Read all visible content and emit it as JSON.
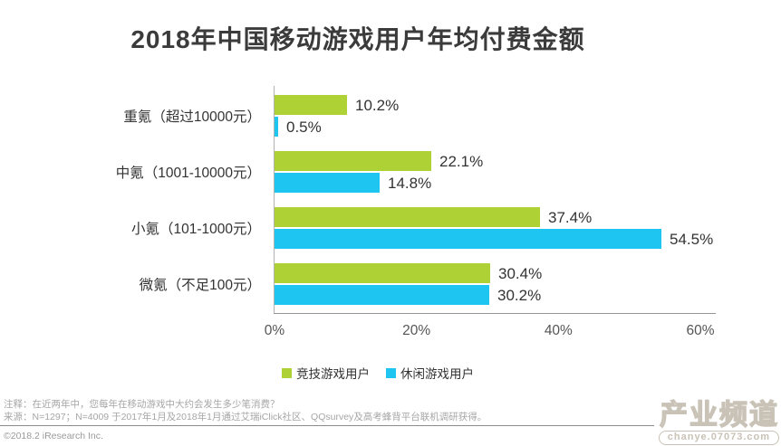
{
  "title": "2018年中国移动游戏用户年均付费金额",
  "chart_data": {
    "type": "bar",
    "orientation": "horizontal",
    "categories": [
      "重氪（超过10000元）",
      "中氪（1001-10000元）",
      "小氪（101-1000元）",
      "微氪（不足100元）"
    ],
    "series": [
      {
        "name": "竞技游戏用户",
        "color": "#aed136",
        "values": [
          10.2,
          22.1,
          37.4,
          30.4
        ]
      },
      {
        "name": "休闲游戏用户",
        "color": "#1ec5f0",
        "values": [
          0.5,
          14.8,
          54.5,
          30.2
        ]
      }
    ],
    "x_ticks": [
      "0%",
      "20%",
      "40%",
      "60%"
    ],
    "xlim": [
      0,
      60
    ],
    "value_suffix": "%",
    "grid": false,
    "legend_position": "bottom"
  },
  "footer": {
    "note": "注释：在近两年中，您每年在移动游戏中大约会发生多少笔消费？",
    "source": "来源：N=1297；N=4009 于2017年1月及2018年1月通过艾瑞iClick社区、QQsurvey及高考蜂背平台联机调研获得。",
    "copyright": "©2018.2 iResearch Inc."
  },
  "watermark": {
    "title": "产业频道",
    "url": "chanye.07073.com"
  },
  "colors": {
    "title_text": "#3b3b3b",
    "label_text": "#333333",
    "tick_text": "#555555",
    "note_text": "#a6a6a6",
    "axis_line": "#b3b3b3",
    "watermark": "#c9c2b6"
  }
}
